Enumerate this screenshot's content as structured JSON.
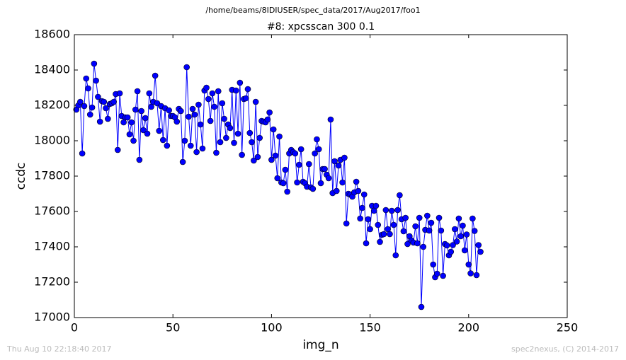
{
  "chart_data": {
    "type": "line",
    "suptitle": "/home/beams/8IDIUSER/spec_data/2017/Aug2017/foo1",
    "title": "#8: xpcsscan 300 0.1",
    "x_label": "img_n",
    "y_label": "ccdc",
    "footer_left": "Thu Aug 10 22:18:40 2017",
    "footer_right": "spec2nexus, (C) 2014-2017",
    "xlim": [
      0,
      250
    ],
    "xticks": [
      0,
      50,
      100,
      150,
      200,
      250
    ],
    "ylim": [
      17000,
      18600
    ],
    "yticks": [
      17000,
      17200,
      17400,
      17600,
      17800,
      18000,
      18200,
      18400,
      18600
    ],
    "x": [
      1,
      2,
      3,
      4,
      5,
      6,
      7,
      8,
      9,
      10,
      11,
      12,
      13,
      14,
      15,
      16,
      17,
      18,
      19,
      20,
      21,
      22,
      23,
      24,
      25,
      26,
      27,
      28,
      29,
      30,
      31,
      32,
      33,
      34,
      35,
      36,
      37,
      38,
      39,
      40,
      41,
      42,
      43,
      44,
      45,
      46,
      47,
      48,
      49,
      50,
      51,
      52,
      53,
      54,
      55,
      56,
      57,
      58,
      59,
      60,
      61,
      62,
      63,
      64,
      65,
      66,
      67,
      68,
      69,
      70,
      71,
      72,
      73,
      74,
      75,
      76,
      77,
      78,
      79,
      80,
      81,
      82,
      83,
      84,
      85,
      86,
      87,
      88,
      89,
      90,
      91,
      92,
      93,
      94,
      95,
      96,
      97,
      98,
      99,
      100,
      101,
      102,
      103,
      104,
      105,
      106,
      107,
      108,
      109,
      110,
      111,
      112,
      113,
      114,
      115,
      116,
      117,
      118,
      119,
      120,
      121,
      122,
      123,
      124,
      125,
      126,
      127,
      128,
      129,
      130,
      131,
      132,
      133,
      134,
      135,
      136,
      137,
      138,
      139,
      140,
      141,
      142,
      143,
      144,
      145,
      146,
      147,
      148,
      149,
      150,
      151,
      152,
      153,
      154,
      155,
      156,
      157,
      158,
      159,
      160,
      161,
      162,
      163,
      164,
      165,
      166,
      167,
      168,
      169,
      170,
      171,
      172,
      173,
      174,
      175,
      176,
      177,
      178,
      179,
      180,
      181,
      182,
      183,
      184,
      185,
      186,
      187,
      188,
      189,
      190,
      191,
      192,
      193,
      194,
      195,
      196,
      197,
      198,
      199,
      200,
      201,
      202,
      203,
      204,
      205,
      206
    ],
    "series": [
      {
        "name": "ccdc",
        "color": "#0000ff",
        "values": [
          18176,
          18200,
          18220,
          17928,
          18196,
          18352,
          18296,
          18148,
          18188,
          18436,
          18340,
          18248,
          18108,
          18224,
          18220,
          18184,
          18124,
          18208,
          18212,
          18220,
          18264,
          17948,
          18268,
          18140,
          18104,
          18132,
          18132,
          18036,
          18104,
          18000,
          18176,
          18280,
          17892,
          18168,
          18060,
          18128,
          18040,
          18268,
          18192,
          18220,
          18368,
          18212,
          18056,
          18196,
          18004,
          18184,
          17972,
          18172,
          18140,
          18140,
          18132,
          18108,
          18180,
          18168,
          17880,
          18000,
          18416,
          18136,
          17972,
          18180,
          18148,
          17936,
          18204,
          18092,
          17956,
          18284,
          18300,
          18236,
          18112,
          18268,
          18192,
          17932,
          18280,
          17992,
          18212,
          18124,
          18016,
          18092,
          18072,
          18288,
          17988,
          18284,
          18040,
          18328,
          17920,
          18236,
          18240,
          18292,
          18044,
          17992,
          17888,
          18220,
          17908,
          18016,
          18112,
          18108,
          18104,
          18120,
          18160,
          17892,
          18064,
          17916,
          17788,
          18024,
          17764,
          17760,
          17836,
          17712,
          17928,
          17948,
          17936,
          17928,
          17764,
          17864,
          17952,
          17768,
          17760,
          17740,
          17868,
          17736,
          17728,
          17928,
          18008,
          17952,
          17760,
          17840,
          17840,
          17808,
          17788,
          18120,
          17704,
          17884,
          17716,
          17860,
          17892,
          17764,
          17904,
          17532,
          17700,
          17696,
          17684,
          17708,
          17768,
          17716,
          17560,
          17620,
          17696,
          17420,
          17556,
          17500,
          17632,
          17604,
          17632,
          17524,
          17428,
          17468,
          17472,
          17608,
          17500,
          17472,
          17604,
          17524,
          17352,
          17608,
          17692,
          17556,
          17488,
          17564,
          17416,
          17460,
          17436,
          17424,
          17516,
          17420,
          17564,
          17060,
          17400,
          17496,
          17576,
          17492,
          17536,
          17300,
          17228,
          17248,
          17564,
          17492,
          17236,
          17416,
          17408,
          17352,
          17372,
          17410,
          17500,
          17430,
          17560,
          17460,
          17520,
          17380,
          17470,
          17300,
          17250,
          17560,
          17490,
          17240,
          17410,
          17372
        ]
      }
    ]
  }
}
